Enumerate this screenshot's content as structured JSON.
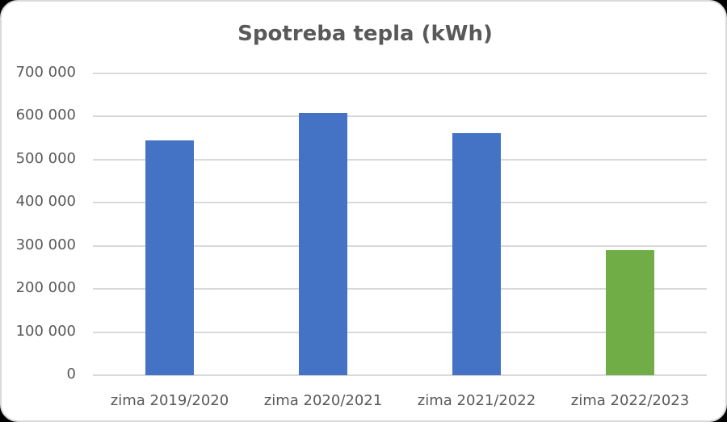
{
  "chart_data": {
    "type": "bar",
    "title": "Spotreba tepla (kWh)",
    "xlabel": "",
    "ylabel": "",
    "categories": [
      "zima 2019/2020",
      "zima 2020/2021",
      "zima 2021/2022",
      "zima 2022/2023"
    ],
    "values": [
      545000,
      608000,
      562000,
      290000
    ],
    "bar_colors": [
      "#4472c4",
      "#4472c4",
      "#4472c4",
      "#70ad47"
    ],
    "ylim": [
      0,
      700000
    ],
    "yticks": [
      0,
      100000,
      200000,
      300000,
      400000,
      500000,
      600000,
      700000
    ],
    "ytick_labels": [
      "0",
      "100 000",
      "200 000",
      "300 000",
      "400 000",
      "500 000",
      "600 000",
      "700 000"
    ],
    "grid": true,
    "legend": "none"
  }
}
